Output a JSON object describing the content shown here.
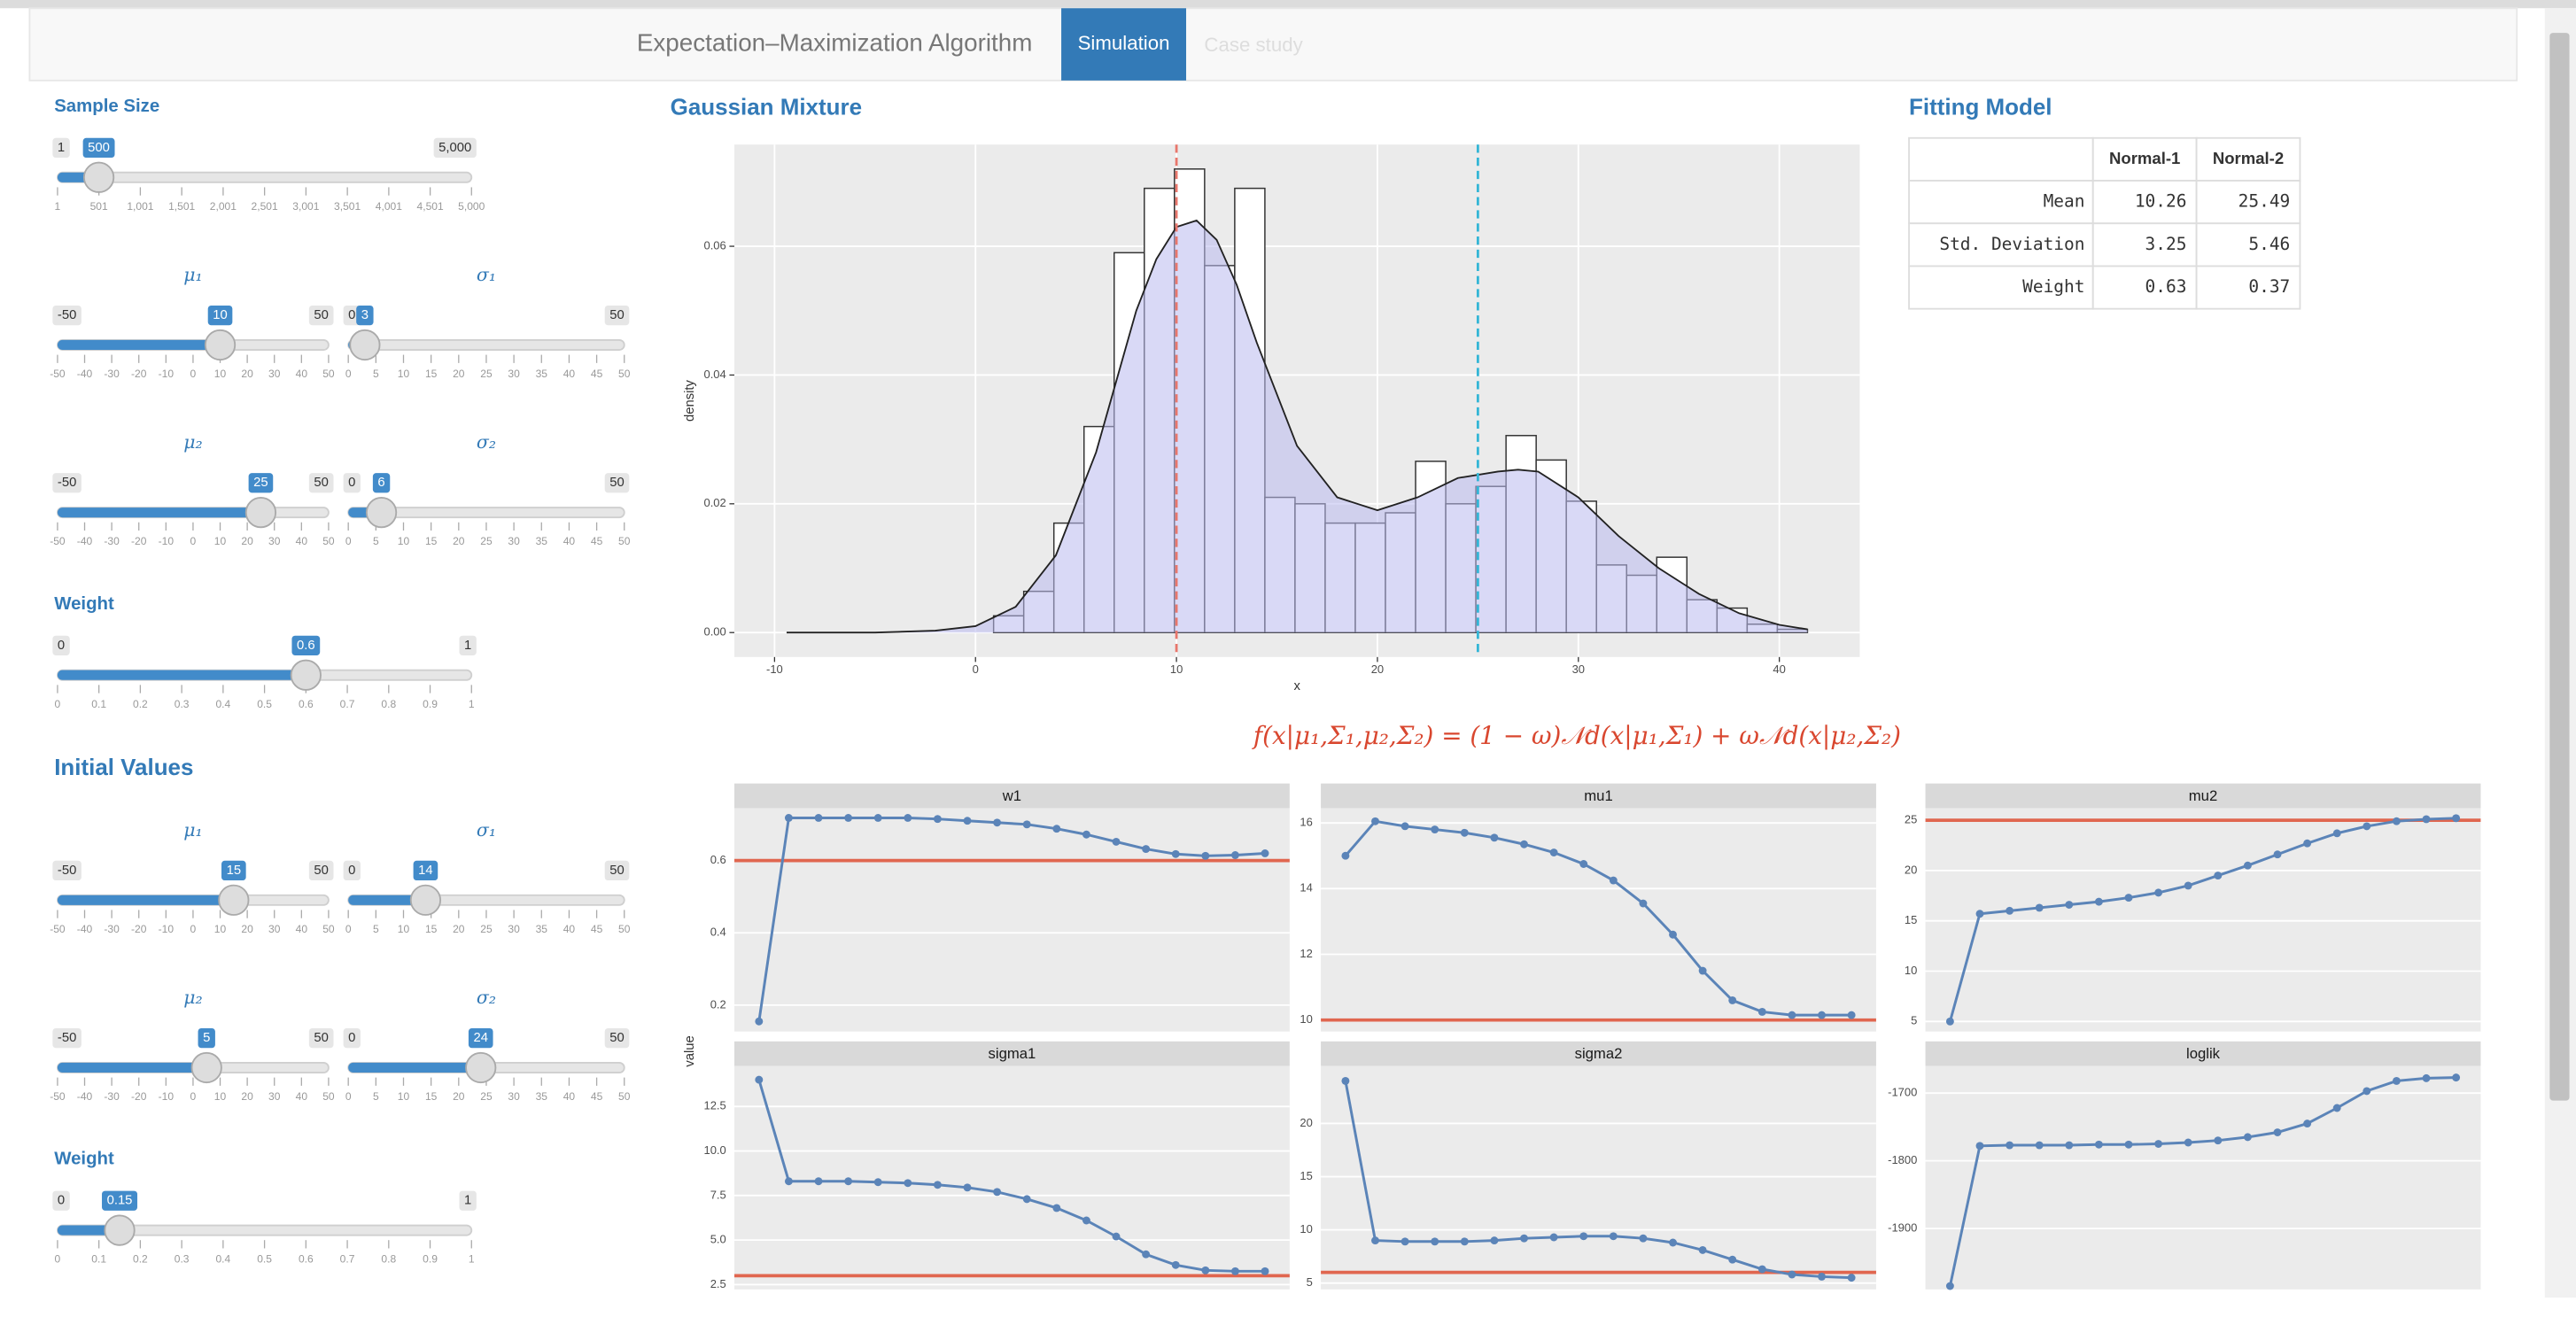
{
  "navbar": {
    "brand": "Expectation–Maximization Algorithm",
    "tabs": [
      "Simulation",
      "Case study"
    ]
  },
  "sidebar": {
    "sample_size": {
      "label": "Sample Size",
      "min": 1,
      "max": {
        "value": 5000,
        "label": "5,000"
      },
      "value": 500,
      "ticks": [
        1,
        501,
        {
          "value": 1001,
          "label": "1,001"
        },
        {
          "value": 1501,
          "label": "1,501"
        },
        {
          "value": 2001,
          "label": "2,001"
        },
        {
          "value": 2501,
          "label": "2,501"
        },
        {
          "value": 3001,
          "label": "3,001"
        },
        {
          "value": 3501,
          "label": "3,501"
        },
        {
          "value": 4001,
          "label": "4,001"
        },
        {
          "value": 4501,
          "label": "4,501"
        },
        {
          "value": 5000,
          "label": "5,000"
        }
      ]
    },
    "mu1": {
      "label": "μ₁",
      "min": -50,
      "max": 50,
      "value": 10,
      "ticks": [
        -50,
        -40,
        -30,
        -20,
        -10,
        0,
        10,
        20,
        30,
        40,
        50
      ]
    },
    "sigma1": {
      "label": "σ₁",
      "min": 0,
      "max": 50,
      "value": 3,
      "ticks": [
        0,
        5,
        10,
        15,
        20,
        25,
        30,
        35,
        40,
        45,
        50
      ]
    },
    "mu2": {
      "label": "μ₂",
      "min": -50,
      "max": 50,
      "value": 25,
      "ticks": [
        -50,
        -40,
        -30,
        -20,
        -10,
        0,
        10,
        20,
        30,
        40,
        50
      ]
    },
    "sigma2": {
      "label": "σ₂",
      "min": 0,
      "max": 50,
      "value": 6,
      "ticks": [
        0,
        5,
        10,
        15,
        20,
        25,
        30,
        35,
        40,
        45,
        50
      ]
    },
    "weight": {
      "label": "Weight",
      "min": 0,
      "max": 1,
      "value": 0.6,
      "ticks": [
        0,
        0.1,
        0.2,
        0.3,
        0.4,
        0.5,
        0.6,
        0.7,
        0.8,
        0.9,
        1
      ]
    },
    "initial_values": {
      "title": "Initial Values",
      "mu1": {
        "label": "μ₁",
        "min": -50,
        "max": 50,
        "value": 15,
        "ticks": [
          -50,
          -40,
          -30,
          -20,
          -10,
          0,
          10,
          20,
          30,
          40,
          50
        ]
      },
      "sigma1": {
        "label": "σ₁",
        "min": 0,
        "max": 50,
        "value": 14,
        "ticks": [
          0,
          5,
          10,
          15,
          20,
          25,
          30,
          35,
          40,
          45,
          50
        ]
      },
      "mu2": {
        "label": "μ₂",
        "min": -50,
        "max": 50,
        "value": 5,
        "ticks": [
          -50,
          -40,
          -30,
          -20,
          -10,
          0,
          10,
          20,
          30,
          40,
          50
        ]
      },
      "sigma2": {
        "label": "σ₂",
        "min": 0,
        "max": 50,
        "value": 24,
        "ticks": [
          0,
          5,
          10,
          15,
          20,
          25,
          30,
          35,
          40,
          45,
          50
        ]
      },
      "weight": {
        "label": "Weight",
        "min": 0,
        "max": 1,
        "value": 0.15,
        "ticks": [
          0,
          0.1,
          0.2,
          0.3,
          0.4,
          0.5,
          0.6,
          0.7,
          0.8,
          0.9,
          1
        ]
      }
    }
  },
  "chart_data": [
    {
      "type": "histogram",
      "title": "Gaussian Mixture",
      "x_label": "x",
      "y_label": "density",
      "bins": [
        0.9,
        2.4,
        3.9,
        5.4,
        6.9,
        8.4,
        9.9,
        11.4,
        12.9,
        14.4,
        15.9,
        17.4,
        18.9,
        20.4,
        21.9,
        23.4,
        24.9,
        26.4,
        27.9,
        29.4,
        30.9,
        32.4,
        33.9,
        35.4,
        36.9,
        38.4,
        39.9,
        41.4
      ],
      "values": [
        0.0026,
        0.0064,
        0.017,
        0.032,
        0.059,
        0.069,
        0.072,
        0.057,
        0.069,
        0.021,
        0.02,
        0.017,
        0.017,
        0.0186,
        0.0266,
        0.02,
        0.0227,
        0.0306,
        0.0268,
        0.0204,
        0.0105,
        0.0089,
        0.0117,
        0.0051,
        0.0038,
        0.0013,
        0.0005
      ],
      "bar_color": "#ffffff",
      "density": {
        "color": "#b9b9ee",
        "x": [
          -9.4,
          -5,
          -2,
          0,
          2,
          4,
          6,
          8,
          9,
          10,
          11,
          12,
          13,
          14,
          16,
          18,
          20,
          22,
          24,
          26,
          27,
          28,
          30,
          32,
          34,
          36,
          38,
          40,
          41.4
        ],
        "y": [
          0,
          0,
          0.0003,
          0.001,
          0.004,
          0.012,
          0.028,
          0.05,
          0.058,
          0.063,
          0.064,
          0.061,
          0.054,
          0.045,
          0.029,
          0.021,
          0.019,
          0.021,
          0.024,
          0.025,
          0.0253,
          0.025,
          0.021,
          0.015,
          0.01,
          0.006,
          0.003,
          0.0012,
          0.0005
        ]
      },
      "vlines": [
        {
          "x": 10,
          "color": "#e8766b"
        },
        {
          "x": 25,
          "color": "#33b5d6"
        }
      ],
      "xlim": [
        -12,
        44
      ],
      "ylim": [
        -0.0038,
        0.0758
      ],
      "xticks": [
        -10,
        0,
        10,
        20,
        30,
        40
      ],
      "yticks": [
        {
          "value": 0,
          "label": "0.00"
        },
        {
          "value": 0.02,
          "label": "0.02"
        },
        {
          "value": 0.04,
          "label": "0.04"
        },
        {
          "value": 0.06,
          "label": "0.06"
        }
      ],
      "grid": true
    },
    {
      "type": "line",
      "y_label": "value",
      "line_color": "#5b84b8",
      "true_color": "#e0664f",
      "panels": [
        {
          "title": "w1",
          "values": [
            0.155,
            0.718,
            0.718,
            0.718,
            0.718,
            0.718,
            0.715,
            0.71,
            0.705,
            0.7,
            0.688,
            0.672,
            0.652,
            0.632,
            0.618,
            0.613,
            0.615,
            0.62
          ],
          "true_value": 0.6,
          "ylim": [
            0.127,
            0.745
          ],
          "yticks": [
            0.2,
            0.4,
            0.6
          ]
        },
        {
          "title": "mu1",
          "values": [
            15.0,
            16.05,
            15.9,
            15.8,
            15.7,
            15.55,
            15.35,
            15.1,
            14.75,
            14.25,
            13.55,
            12.6,
            11.5,
            10.6,
            10.25,
            10.15,
            10.15,
            10.15
          ],
          "true_value": 10,
          "ylim": [
            9.65,
            16.45
          ],
          "yticks": [
            10,
            12,
            14,
            16
          ]
        },
        {
          "title": "mu2",
          "values": [
            5,
            15.7,
            16.0,
            16.3,
            16.6,
            16.9,
            17.3,
            17.8,
            18.5,
            19.5,
            20.5,
            21.6,
            22.7,
            23.7,
            24.4,
            24.9,
            25.1,
            25.2
          ],
          "true_value": 25,
          "ylim": [
            4.0,
            26.2
          ],
          "yticks": [
            5,
            10,
            15,
            20,
            25
          ]
        },
        {
          "title": "sigma1",
          "values": [
            14.0,
            8.3,
            8.3,
            8.3,
            8.25,
            8.2,
            8.1,
            7.95,
            7.7,
            7.3,
            6.8,
            6.1,
            5.2,
            4.2,
            3.6,
            3.3,
            3.25,
            3.25
          ],
          "true_value": 3,
          "ylim": [
            2.23,
            14.77
          ],
          "yticks": [
            2.5,
            {
              "value": 5,
              "label": "5.0"
            },
            7.5,
            {
              "value": 10,
              "label": "10.0"
            },
            12.5
          ]
        },
        {
          "title": "sigma2",
          "values": [
            24,
            9.0,
            8.9,
            8.9,
            8.9,
            9.0,
            9.2,
            9.3,
            9.4,
            9.4,
            9.2,
            8.8,
            8.1,
            7.2,
            6.3,
            5.8,
            5.6,
            5.5
          ],
          "true_value": 6,
          "ylim": [
            4.4,
            25.4
          ],
          "yticks": [
            5,
            10,
            15,
            20
          ]
        },
        {
          "title": "loglik",
          "values": [
            -1985,
            -1778,
            -1777,
            -1777,
            -1777,
            -1776,
            -1776,
            -1775,
            -1773,
            -1770,
            -1765,
            -1758,
            -1745,
            -1722,
            -1697,
            -1682,
            -1678,
            -1677
          ],
          "ylim": [
            -1990,
            -1660
          ],
          "yticks": [
            -1900,
            -1800,
            -1700
          ]
        }
      ]
    }
  ],
  "formula": "f(x|μ₁,Σ₁,μ₂,Σ₂) = (1 − ω)𝒩d(x|μ₁,Σ₁) + ω𝒩d(x|μ₂,Σ₂)",
  "fitting_model": {
    "title": "Fitting Model",
    "columns": [
      "Normal-1",
      "Normal-2"
    ],
    "rows": [
      {
        "label": "Mean",
        "values": [
          10.26,
          25.49
        ]
      },
      {
        "label": "Std. Deviation",
        "values": [
          3.25,
          5.46
        ]
      },
      {
        "label": "Weight",
        "values": [
          0.63,
          0.37
        ]
      }
    ]
  }
}
